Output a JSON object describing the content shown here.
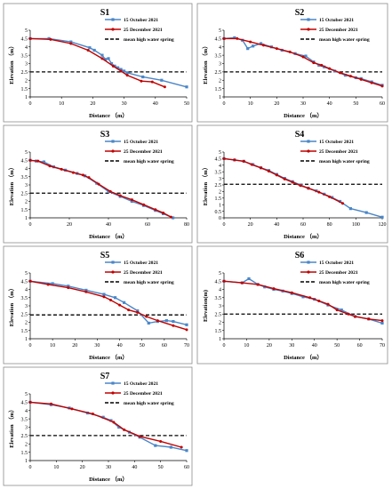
{
  "legend_labels": {
    "oct": "15 October 2021",
    "dec": "25 December 2021",
    "mhws": "mean high water spring"
  },
  "colors": {
    "oct": "#4a86c8",
    "dec": "#c00000",
    "mhws": "#000000",
    "frame": "#8c8c8c"
  },
  "chart_data": [
    {
      "type": "line",
      "title": "S1",
      "xlabel": "Distance （m）",
      "ylabel": "Elevation （m）",
      "xlim": [
        0,
        50
      ],
      "ylim": [
        1,
        5
      ],
      "xticks": [
        0,
        10,
        20,
        30,
        40,
        50
      ],
      "yticks": [
        1,
        1.5,
        2,
        2.5,
        3,
        3.5,
        4,
        4.5,
        5
      ],
      "mhws": 2.5,
      "series": [
        {
          "name": "15 October 2021",
          "color": "#4a86c8",
          "marker": "square",
          "x": [
            0,
            6,
            13,
            19,
            20.5,
            23,
            24,
            25,
            26,
            27,
            28,
            29,
            30,
            31,
            36,
            42,
            50
          ],
          "y": [
            4.5,
            4.5,
            4.3,
            3.95,
            3.8,
            3.5,
            3.25,
            3.3,
            3.0,
            2.85,
            2.75,
            2.65,
            2.55,
            2.45,
            2.2,
            2.0,
            1.6
          ]
        },
        {
          "name": "25 December 2021",
          "color": "#c00000",
          "marker": "circle",
          "x": [
            0,
            6.5,
            13,
            18.5,
            23,
            26.5,
            29,
            31,
            35.5,
            39,
            43
          ],
          "y": [
            4.5,
            4.45,
            4.2,
            3.8,
            3.3,
            2.85,
            2.55,
            2.3,
            1.95,
            1.9,
            1.6
          ]
        }
      ]
    },
    {
      "type": "line",
      "title": "S2",
      "xlabel": "Distance （m）",
      "ylabel": "Elevation （m）",
      "xlim": [
        0,
        60
      ],
      "ylim": [
        1,
        5
      ],
      "xticks": [
        0,
        10,
        20,
        30,
        40,
        50,
        60
      ],
      "yticks": [
        1,
        1.5,
        2,
        2.5,
        3,
        3.5,
        4,
        4.5,
        5
      ],
      "mhws": 2.5,
      "series": [
        {
          "name": "15 October 2021",
          "color": "#4a86c8",
          "marker": "square",
          "x": [
            0,
            4,
            7,
            9,
            11,
            14,
            18,
            22,
            27,
            31,
            34,
            36,
            38,
            42,
            46,
            50,
            52,
            56,
            60
          ],
          "y": [
            4.5,
            4.55,
            4.4,
            3.9,
            4.05,
            4.2,
            4.0,
            3.8,
            3.6,
            3.45,
            3.1,
            2.9,
            2.8,
            2.55,
            2.3,
            2.15,
            2.1,
            1.9,
            1.7
          ]
        },
        {
          "name": "25 December 2021",
          "color": "#c00000",
          "marker": "circle",
          "x": [
            0,
            5,
            10,
            15,
            20,
            25,
            30,
            34,
            37,
            40,
            44,
            48,
            52,
            56,
            60
          ],
          "y": [
            4.5,
            4.5,
            4.3,
            4.1,
            3.9,
            3.7,
            3.4,
            3.05,
            2.9,
            2.7,
            2.45,
            2.25,
            2.05,
            1.85,
            1.65
          ]
        }
      ]
    },
    {
      "type": "line",
      "title": "S3",
      "xlabel": "Distance （m）",
      "ylabel": "Elevation （m）",
      "xlim": [
        0,
        80
      ],
      "ylim": [
        1,
        5
      ],
      "xticks": [
        0,
        20,
        40,
        60,
        80
      ],
      "yticks": [
        1,
        1.5,
        2,
        2.5,
        3,
        3.5,
        4,
        4.5,
        5
      ],
      "mhws": 2.5,
      "series": [
        {
          "name": "15 October 2021",
          "color": "#4a86c8",
          "marker": "square",
          "x": [
            0,
            3,
            7,
            12,
            18,
            24,
            28,
            34,
            40,
            46,
            52,
            58,
            64,
            68,
            73
          ],
          "y": [
            4.5,
            4.45,
            4.4,
            4.1,
            3.9,
            3.7,
            3.55,
            3.1,
            2.6,
            2.3,
            2.0,
            1.75,
            1.45,
            1.25,
            1.0
          ]
        },
        {
          "name": "25 December 2021",
          "color": "#c00000",
          "marker": "circle",
          "x": [
            0,
            4,
            10,
            16,
            22,
            27,
            30,
            35,
            41,
            46,
            52,
            58,
            64,
            68,
            72
          ],
          "y": [
            4.5,
            4.45,
            4.15,
            3.95,
            3.75,
            3.6,
            3.45,
            3.05,
            2.6,
            2.35,
            2.1,
            1.8,
            1.5,
            1.3,
            1.05
          ]
        }
      ]
    },
    {
      "type": "line",
      "title": "S4",
      "xlabel": "Distance （m）",
      "ylabel": "Elevation （m）",
      "xlim": [
        0,
        120
      ],
      "ylim": [
        0,
        5
      ],
      "xticks": [
        0,
        20,
        40,
        60,
        80,
        100,
        120
      ],
      "yticks": [
        0,
        0.5,
        1,
        1.5,
        2,
        2.5,
        3,
        3.5,
        4,
        4.5,
        5
      ],
      "mhws": 2.55,
      "series": [
        {
          "name": "15 October 2021",
          "color": "#4a86c8",
          "marker": "square",
          "x": [
            0,
            8,
            15,
            22,
            28,
            34,
            40,
            46,
            52,
            58,
            64,
            70,
            76,
            82,
            88,
            96,
            108,
            120
          ],
          "y": [
            4.5,
            4.4,
            4.3,
            4.05,
            3.8,
            3.6,
            3.3,
            3.0,
            2.75,
            2.5,
            2.25,
            2.05,
            1.8,
            1.55,
            1.25,
            0.7,
            0.4,
            0.05
          ]
        },
        {
          "name": "25 December 2021",
          "color": "#c00000",
          "marker": "circle",
          "x": [
            0,
            8,
            15,
            21,
            28,
            34,
            40,
            46,
            52,
            58,
            64,
            72,
            80,
            90
          ],
          "y": [
            4.5,
            4.4,
            4.3,
            4.05,
            3.8,
            3.55,
            3.25,
            2.95,
            2.7,
            2.45,
            2.25,
            1.95,
            1.6,
            1.1
          ]
        }
      ]
    },
    {
      "type": "line",
      "title": "S5",
      "xlabel": "Distance （m）",
      "ylabel": "Elevation （m）",
      "xlim": [
        0,
        70
      ],
      "ylim": [
        1,
        5
      ],
      "xticks": [
        0,
        10,
        20,
        30,
        40,
        50,
        60,
        70
      ],
      "yticks": [
        1,
        1.5,
        2,
        2.5,
        3,
        3.5,
        4,
        4.5,
        5
      ],
      "mhws": 2.45,
      "series": [
        {
          "name": "15 October 2021",
          "color": "#4a86c8",
          "marker": "square",
          "x": [
            0,
            10,
            17,
            25,
            33,
            38,
            42,
            48,
            53,
            57,
            61,
            64,
            70
          ],
          "y": [
            4.5,
            4.35,
            4.2,
            3.95,
            3.7,
            3.5,
            3.2,
            2.7,
            1.95,
            2.05,
            2.1,
            2.05,
            1.85
          ]
        },
        {
          "name": "25 December 2021",
          "color": "#c00000",
          "marker": "circle",
          "x": [
            0,
            8,
            17,
            25,
            33,
            36,
            40,
            44,
            48,
            52,
            57,
            64,
            70
          ],
          "y": [
            4.5,
            4.3,
            4.1,
            3.85,
            3.55,
            3.35,
            3.05,
            2.75,
            2.6,
            2.35,
            2.1,
            1.8,
            1.55
          ]
        }
      ]
    },
    {
      "type": "line",
      "title": "S6",
      "xlabel": "Distance （m）",
      "ylabel": "Elevation(m)",
      "xlim": [
        0,
        70
      ],
      "ylim": [
        1,
        5
      ],
      "xticks": [
        0,
        10,
        20,
        30,
        40,
        50,
        60,
        70
      ],
      "yticks": [
        1,
        1.5,
        2,
        2.5,
        3,
        3.5,
        4,
        4.5,
        5
      ],
      "mhws": 2.5,
      "series": [
        {
          "name": "15 October 2021",
          "color": "#4a86c8",
          "marker": "square",
          "x": [
            0,
            8,
            11,
            15,
            18,
            22,
            26,
            30,
            35,
            40,
            46,
            52,
            58,
            64,
            70
          ],
          "y": [
            4.5,
            4.4,
            4.65,
            4.3,
            4.15,
            4.0,
            3.9,
            3.75,
            3.55,
            3.4,
            3.05,
            2.75,
            2.35,
            2.2,
            1.95
          ]
        },
        {
          "name": "25 December 2021",
          "color": "#c00000",
          "marker": "circle",
          "x": [
            0,
            8,
            15,
            22,
            30,
            38,
            42,
            46,
            50,
            55,
            58,
            64,
            70
          ],
          "y": [
            4.5,
            4.4,
            4.3,
            4.05,
            3.8,
            3.5,
            3.3,
            3.1,
            2.75,
            2.5,
            2.35,
            2.2,
            2.1
          ]
        }
      ]
    },
    {
      "type": "line",
      "title": "S7",
      "xlabel": "Distance （m）",
      "ylabel": "Elevation （m）",
      "xlim": [
        0,
        60
      ],
      "ylim": [
        1,
        5
      ],
      "xticks": [
        0,
        10,
        20,
        30,
        40,
        50,
        60
      ],
      "yticks": [
        1,
        1.5,
        2,
        2.5,
        3,
        3.5,
        4,
        4.5,
        5
      ],
      "mhws": 2.5,
      "series": [
        {
          "name": "15 October 2021",
          "color": "#4a86c8",
          "marker": "square",
          "x": [
            0,
            8,
            15,
            22,
            28,
            31,
            34,
            38,
            42,
            48,
            54,
            60
          ],
          "y": [
            4.5,
            4.35,
            4.15,
            3.85,
            3.6,
            3.4,
            3.0,
            2.7,
            2.4,
            1.9,
            1.8,
            1.6
          ]
        },
        {
          "name": "25 December 2021",
          "color": "#c00000",
          "marker": "circle",
          "x": [
            0,
            8,
            16,
            24,
            32,
            36,
            42,
            50,
            58
          ],
          "y": [
            4.5,
            4.4,
            4.1,
            3.8,
            3.3,
            2.85,
            2.45,
            2.15,
            1.8
          ]
        }
      ]
    }
  ]
}
